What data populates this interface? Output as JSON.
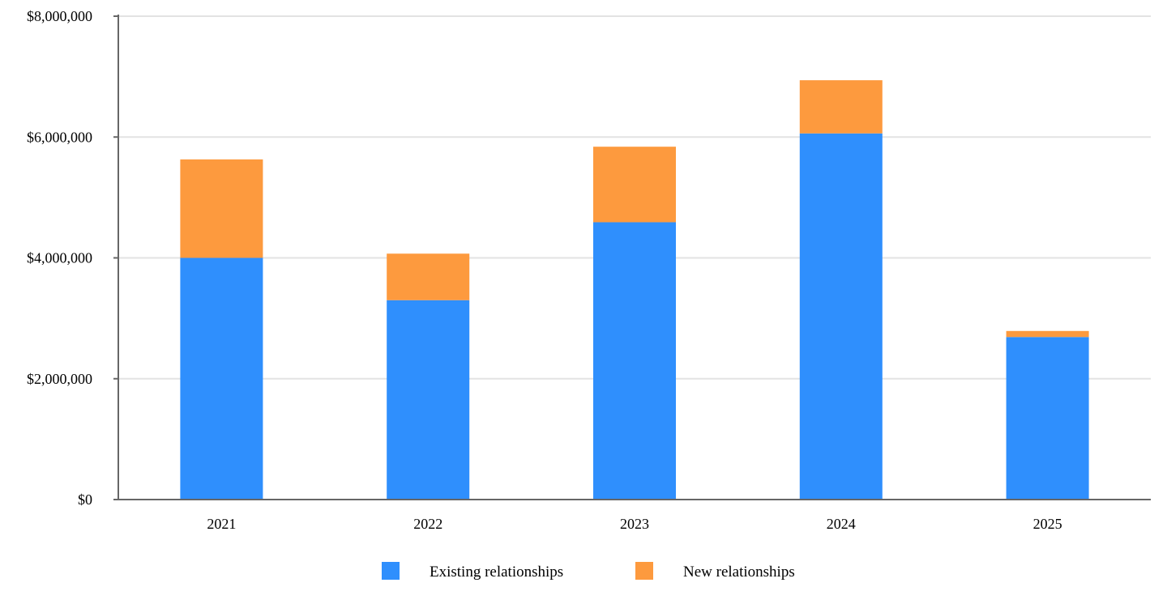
{
  "chart_data": {
    "type": "bar",
    "stacked": true,
    "categories": [
      "2021",
      "2022",
      "2023",
      "2024",
      "2025"
    ],
    "series": [
      {
        "name": "Existing relationships",
        "color": "#2f8ffd",
        "values": [
          4000000,
          3300000,
          4590000,
          6060000,
          2690000
        ]
      },
      {
        "name": "New relationships",
        "color": "#fd9a3e",
        "values": [
          1630000,
          770000,
          1250000,
          880000,
          100000
        ]
      }
    ],
    "ylim": [
      0,
      8000000
    ],
    "y_ticks": [
      0,
      2000000,
      4000000,
      6000000,
      8000000
    ],
    "y_tick_labels": [
      "$0",
      "$2,000,000",
      "$4,000,000",
      "$6,000,000",
      "$8,000,000"
    ],
    "title": "",
    "xlabel": "",
    "ylabel": "",
    "grid": true,
    "legend_position": "bottom"
  }
}
